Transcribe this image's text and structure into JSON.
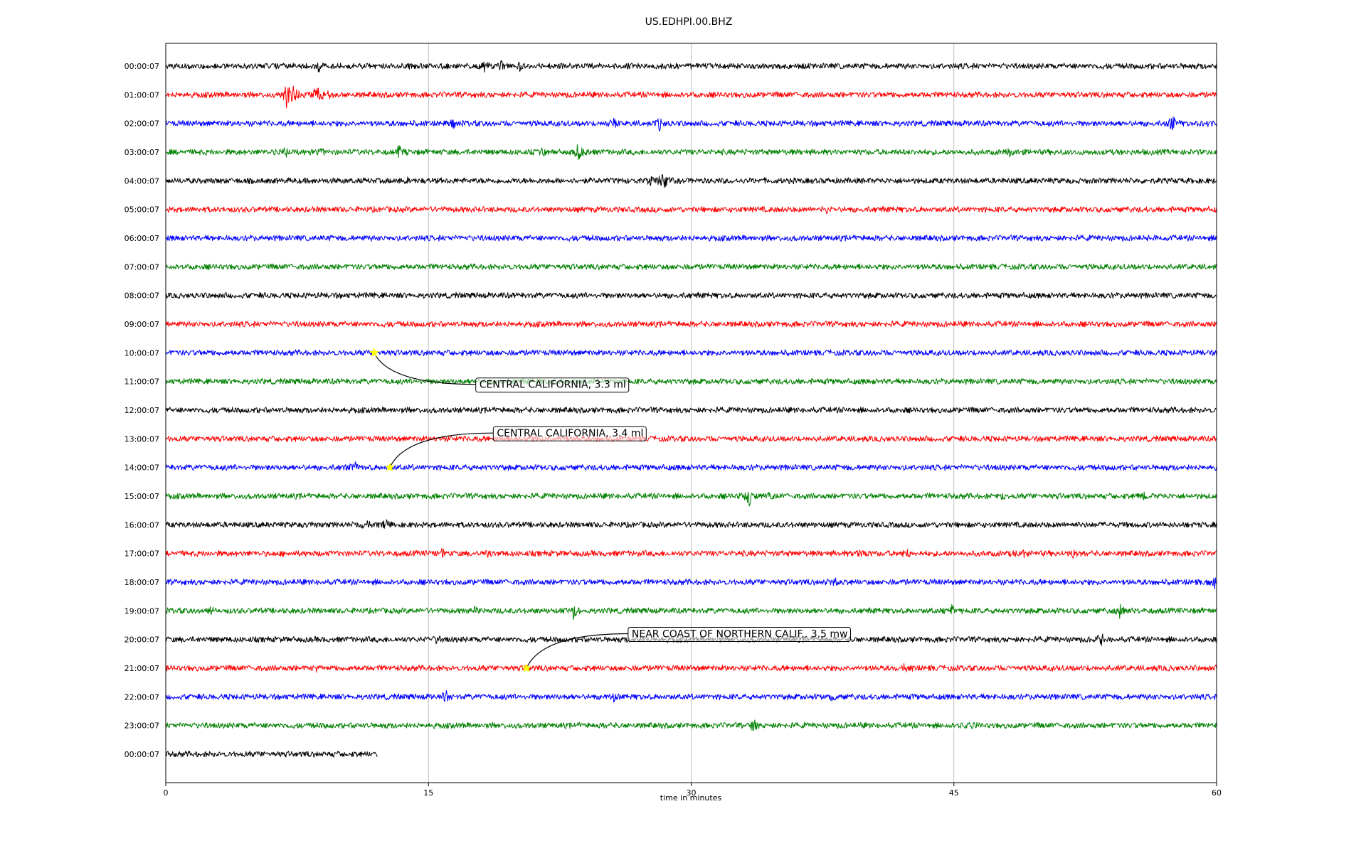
{
  "chart_data": {
    "type": "line",
    "title": "US.EDHPI.00.BHZ",
    "xlabel": "time in minutes",
    "ylabel": "",
    "xlim": [
      0,
      60
    ],
    "x_ticks": [
      0,
      15,
      30,
      45,
      60
    ],
    "x_tick_labels": [
      "0",
      "15",
      "30",
      "45",
      "60"
    ],
    "grid": "vertical",
    "trace_colors": [
      "#000000",
      "#ff0000",
      "#0000ff",
      "#008000"
    ],
    "rows": [
      {
        "label": "00:00:07",
        "end_minute": 60,
        "events": [
          [
            8.7,
            9
          ],
          [
            18.2,
            10
          ],
          [
            19.2,
            8
          ],
          [
            20.2,
            7
          ]
        ]
      },
      {
        "label": "01:00:07",
        "end_minute": 60,
        "events": [
          [
            6.9,
            26
          ],
          [
            7.3,
            22
          ],
          [
            8.7,
            18
          ],
          [
            9.3,
            8
          ]
        ]
      },
      {
        "label": "02:00:07",
        "end_minute": 60,
        "events": [
          [
            16.4,
            8
          ],
          [
            25.6,
            9
          ],
          [
            28.2,
            9
          ],
          [
            57.5,
            16
          ],
          [
            59.5,
            6
          ]
        ]
      },
      {
        "label": "03:00:07",
        "end_minute": 60,
        "events": [
          [
            6.8,
            9
          ],
          [
            8.8,
            8
          ],
          [
            13.3,
            9
          ],
          [
            21.5,
            6
          ],
          [
            23.6,
            16
          ],
          [
            48.2,
            5
          ]
        ]
      },
      {
        "label": "04:00:07",
        "end_minute": 60,
        "events": [
          [
            13.9,
            8
          ],
          [
            27.7,
            9
          ],
          [
            28.4,
            22
          ]
        ]
      },
      {
        "label": "05:00:07",
        "end_minute": 60,
        "events": [
          [
            37.7,
            7
          ]
        ]
      },
      {
        "label": "06:00:07",
        "end_minute": 60,
        "events": [
          [
            56.5,
            4
          ]
        ]
      },
      {
        "label": "07:00:07",
        "end_minute": 60,
        "events": []
      },
      {
        "label": "08:00:07",
        "end_minute": 60,
        "events": []
      },
      {
        "label": "09:00:07",
        "end_minute": 60,
        "events": []
      },
      {
        "label": "10:00:07",
        "end_minute": 60,
        "events": []
      },
      {
        "label": "11:00:07",
        "end_minute": 60,
        "events": []
      },
      {
        "label": "12:00:07",
        "end_minute": 60,
        "events": []
      },
      {
        "label": "13:00:07",
        "end_minute": 60,
        "events": []
      },
      {
        "label": "14:00:07",
        "end_minute": 60,
        "events": [
          [
            10.7,
            12
          ]
        ]
      },
      {
        "label": "15:00:07",
        "end_minute": 60,
        "events": [
          [
            33.3,
            18
          ],
          [
            34.5,
            8
          ],
          [
            47.8,
            5
          ],
          [
            55.8,
            5
          ]
        ]
      },
      {
        "label": "16:00:07",
        "end_minute": 60,
        "events": [
          [
            8.4,
            6
          ],
          [
            11.4,
            8
          ],
          [
            12.6,
            10
          ]
        ]
      },
      {
        "label": "17:00:07",
        "end_minute": 60,
        "events": [
          [
            15.8,
            6
          ],
          [
            18.4,
            6
          ],
          [
            39.7,
            8
          ],
          [
            42.3,
            9
          ],
          [
            49.0,
            7
          ],
          [
            51.8,
            7
          ]
        ]
      },
      {
        "label": "18:00:07",
        "end_minute": 60,
        "events": [
          [
            38.2,
            6
          ],
          [
            59.9,
            10
          ]
        ]
      },
      {
        "label": "19:00:07",
        "end_minute": 60,
        "events": [
          [
            2.6,
            9
          ],
          [
            17.7,
            6
          ],
          [
            23.3,
            15
          ],
          [
            44.9,
            8
          ],
          [
            54.5,
            12
          ]
        ]
      },
      {
        "label": "20:00:07",
        "end_minute": 60,
        "events": [
          [
            15.5,
            7
          ],
          [
            53.4,
            10
          ]
        ]
      },
      {
        "label": "21:00:07",
        "end_minute": 60,
        "events": [
          [
            8.6,
            5
          ],
          [
            42.2,
            5
          ]
        ]
      },
      {
        "label": "22:00:07",
        "end_minute": 60,
        "events": [
          [
            16.0,
            10
          ],
          [
            25.6,
            6
          ],
          [
            38.0,
            7
          ]
        ]
      },
      {
        "label": "23:00:07",
        "end_minute": 60,
        "events": [
          [
            33.6,
            10
          ],
          [
            45.9,
            7
          ]
        ]
      },
      {
        "label": "00:00:07",
        "end_minute": 12.1,
        "events": []
      }
    ],
    "annotations": [
      {
        "text": "CENTRAL CALIFORNIA, 3.3 ml",
        "row": 10,
        "minute": 11.9,
        "label_minute": 17.7,
        "label_row": 11.1
      },
      {
        "text": "CENTRAL CALIFORNIA, 3.4 ml",
        "row": 14,
        "minute": 12.8,
        "label_minute": 18.7,
        "label_row": 12.8
      },
      {
        "text": "NEAR COAST OF NORTHERN CALIF., 3.5 mw",
        "row": 21,
        "minute": 20.6,
        "label_minute": 26.4,
        "label_row": 19.8
      }
    ],
    "marker": {
      "shape": "star",
      "color": "#ffff00"
    }
  }
}
